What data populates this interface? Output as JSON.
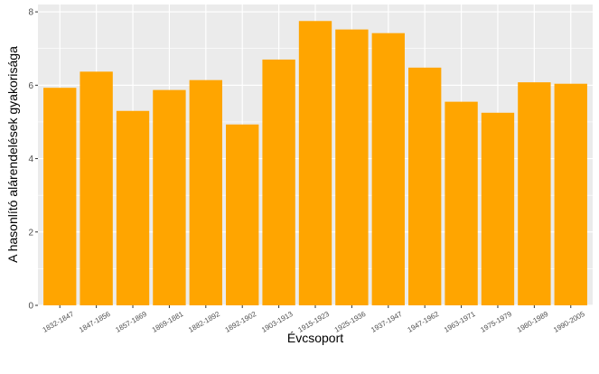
{
  "chart_data": {
    "type": "bar",
    "xlabel": "Évcsoport",
    "ylabel": "A hasonlító alárendelések gyakorisága",
    "categories": [
      "1832-1847",
      "1847-1856",
      "1857-1869",
      "1869-1881",
      "1882-1892",
      "1892-1902",
      "1903-1913",
      "1915-1923",
      "1925-1936",
      "1937-1947",
      "1947-1962",
      "1963-1971",
      "1975-1979",
      "1980-1989",
      "1990-2005"
    ],
    "values": [
      5.93,
      6.37,
      5.3,
      5.87,
      6.14,
      4.93,
      6.7,
      7.75,
      7.52,
      7.42,
      6.48,
      5.55,
      5.25,
      6.08,
      6.04
    ],
    "ylim": [
      0,
      8.2
    ],
    "yticks": [
      0,
      2,
      4,
      6,
      8
    ],
    "grid": true,
    "legend": "none",
    "colors": {
      "bar": "#FFA500",
      "panel": "#EBEBEB",
      "grid": "#FFFFFF"
    }
  }
}
